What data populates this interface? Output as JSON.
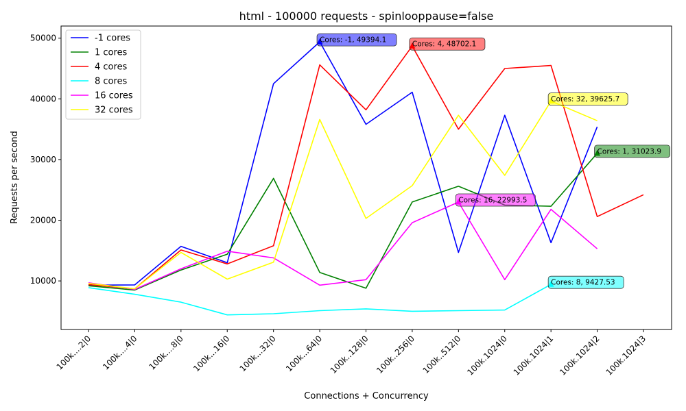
{
  "chart_data": {
    "type": "line",
    "title": "html - 100000 requests - spinlooppause=false",
    "xlabel": "Connections + Concurrency",
    "ylabel": "Requests per second",
    "categories": [
      "100k....2|0",
      "100k....4|0",
      "100k....8|0",
      "100k...16|0",
      "100k...32|0",
      "100k...64|0",
      "100k..128|0",
      "100k..256|0",
      "100k..512|0",
      "100k.1024|0",
      "100k.1024|1",
      "100k.1024|2",
      "100k.1024|3"
    ],
    "ylim": [
      2000,
      52000
    ],
    "yticks": [
      10000,
      20000,
      30000,
      40000,
      50000
    ],
    "grid": false,
    "legend_position": "top-left",
    "series": [
      {
        "name": "-1 cores",
        "color": "#0000ff",
        "values": [
          9300,
          9350,
          15700,
          13000,
          42500,
          49394.1,
          35800,
          41100,
          14700,
          37300,
          16300,
          35400,
          null
        ]
      },
      {
        "name": "1 cores",
        "color": "#008000",
        "values": [
          9200,
          8500,
          11800,
          14400,
          26900,
          11400,
          8800,
          23000,
          25600,
          22500,
          22300,
          31023.9,
          null
        ]
      },
      {
        "name": "4 cores",
        "color": "#ff0000",
        "values": [
          9400,
          8700,
          15100,
          12800,
          15800,
          45600,
          38200,
          48702.1,
          35000,
          45000,
          45500,
          20600,
          24200
        ]
      },
      {
        "name": "8 cores",
        "color": "#00ffff",
        "values": [
          8900,
          7800,
          6500,
          4400,
          4600,
          5100,
          5400,
          5000,
          5100,
          5200,
          9427.53,
          null,
          null
        ]
      },
      {
        "name": "16 cores",
        "color": "#ff00ff",
        "values": [
          9700,
          8600,
          12000,
          14900,
          13800,
          9300,
          10200,
          19600,
          22993.5,
          10200,
          21800,
          15300,
          null
        ]
      },
      {
        "name": "32 cores",
        "color": "#ffff00",
        "values": [
          9600,
          8700,
          14700,
          10300,
          13100,
          36600,
          20300,
          25700,
          37300,
          27400,
          39625.7,
          36400,
          null
        ]
      }
    ],
    "annotations": [
      {
        "text": "Cores: -1, 49394.1",
        "series": 0,
        "index": 5,
        "color": "#0000ff"
      },
      {
        "text": "Cores: 4, 48702.1",
        "series": 2,
        "index": 7,
        "color": "#ff0000"
      },
      {
        "text": "Cores: 32, 39625.7",
        "series": 5,
        "index": 10,
        "color": "#ffff00"
      },
      {
        "text": "Cores: 1, 31023.9",
        "series": 1,
        "index": 11,
        "color": "#008000"
      },
      {
        "text": "Cores: 16, 22993.5",
        "series": 4,
        "index": 8,
        "color": "#ff00ff"
      },
      {
        "text": "Cores: 8, 9427.53",
        "series": 3,
        "index": 10,
        "color": "#00ffff"
      }
    ]
  }
}
